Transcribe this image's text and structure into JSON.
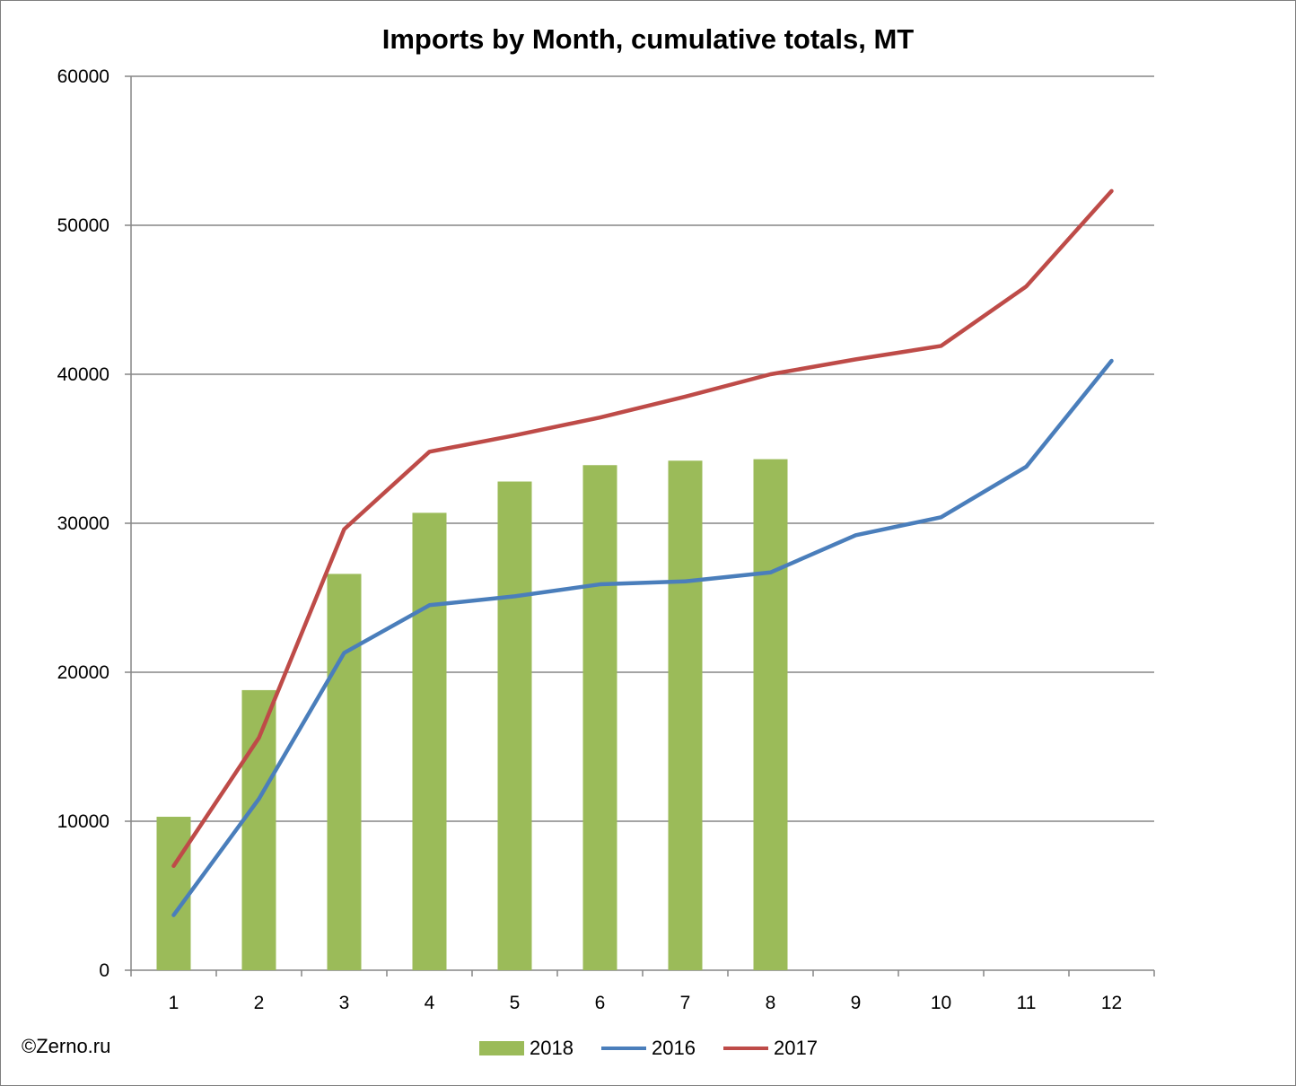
{
  "copyright": "©Zerno.ru",
  "chart_data": {
    "type": "bar",
    "title": "Imports by Month, cumulative totals, MT",
    "xlabel": "",
    "ylabel": "",
    "categories": [
      "1",
      "2",
      "3",
      "4",
      "5",
      "6",
      "7",
      "8",
      "9",
      "10",
      "11",
      "12"
    ],
    "ylim": [
      0,
      60000
    ],
    "yticks": [
      "0",
      "10000",
      "20000",
      "30000",
      "40000",
      "50000",
      "60000"
    ],
    "grid": true,
    "legend_position": "bottom",
    "series": [
      {
        "name": "2018",
        "type": "bar",
        "color": "#9bbb59",
        "values": [
          10300,
          18800,
          26600,
          30700,
          32800,
          33900,
          34200,
          34300,
          null,
          null,
          null,
          null
        ]
      },
      {
        "name": "2016",
        "type": "line",
        "color": "#4a7ebb",
        "values": [
          3700,
          11500,
          21300,
          24500,
          25100,
          25900,
          26100,
          26700,
          29200,
          30400,
          33800,
          40900
        ]
      },
      {
        "name": "2017",
        "type": "line",
        "color": "#be4b48",
        "values": [
          7000,
          15600,
          29600,
          34800,
          35900,
          37100,
          38500,
          40000,
          41000,
          41900,
          45900,
          52300
        ]
      }
    ]
  }
}
